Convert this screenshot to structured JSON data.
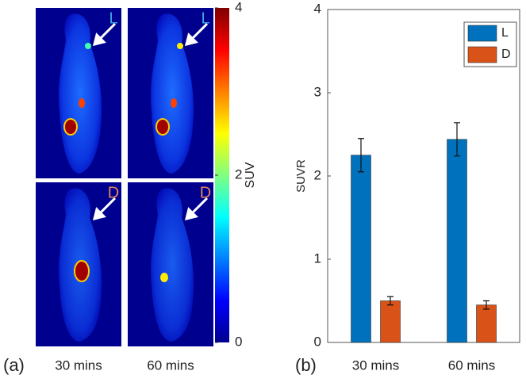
{
  "chart_data": [
    {
      "type": "image",
      "label": "(a)",
      "columns": [
        "30 mins",
        "60 mins"
      ],
      "rows": [
        "L",
        "D"
      ],
      "colorbar": {
        "label": "SUV",
        "lim": [
          0,
          4
        ],
        "ticks": [
          0,
          2,
          4
        ]
      }
    },
    {
      "type": "bar",
      "label": "(b)",
      "ylabel": "SUVR",
      "categories": [
        "30 mins",
        "60 mins"
      ],
      "series": [
        {
          "name": "L",
          "color": "#0072bd",
          "values": [
            2.25,
            2.44
          ],
          "errors": [
            0.2,
            0.2
          ]
        },
        {
          "name": "D",
          "color": "#d95319",
          "values": [
            0.5,
            0.45
          ],
          "errors": [
            0.05,
            0.05
          ]
        }
      ],
      "ylim": [
        0,
        4
      ],
      "yticks": [
        0,
        1,
        2,
        3,
        4
      ],
      "legend": "top-right"
    }
  ]
}
